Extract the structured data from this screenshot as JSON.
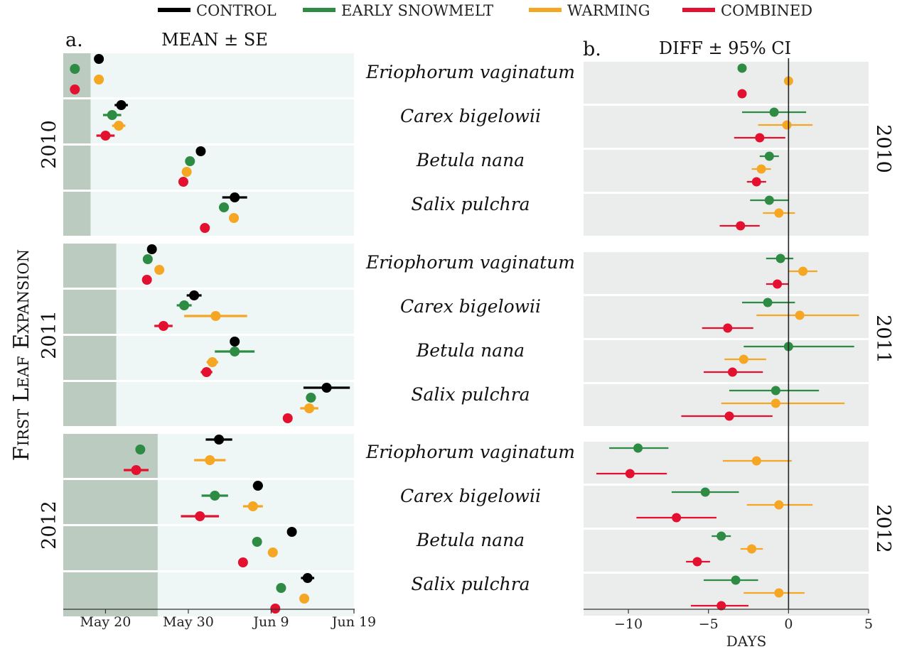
{
  "legend": [
    {
      "key": "control",
      "label": "CONTROL",
      "color": "#000000"
    },
    {
      "key": "early",
      "label": "EARLY SNOWMELT",
      "color": "#2e8b43"
    },
    {
      "key": "warming",
      "label": "WARMING",
      "color": "#f5a623"
    },
    {
      "key": "combined",
      "label": "COMBINED",
      "color": "#e3112f"
    }
  ],
  "y_axis_label": "First Leaf Expansion",
  "panel_a": {
    "letter": "a.",
    "title": "MEAN ± SE"
  },
  "panel_b": {
    "letter": "b.",
    "title": "DIFF ± 95% CI",
    "xlabel": "DAYS"
  },
  "chart_data": [
    {
      "id": "a",
      "type": "scatter",
      "title": "MEAN ± SE",
      "x_unit": "day of year",
      "x_ticks": [
        {
          "value": 140,
          "label": "May 20"
        },
        {
          "value": 150,
          "label": "May 30"
        },
        {
          "value": 160,
          "label": "Jun 9"
        },
        {
          "value": 170,
          "label": "Jun 19"
        }
      ],
      "xlim": [
        134.9,
        170
      ],
      "shaded_until": {
        "2010": 138.2,
        "2011": 141.3,
        "2012": 146.3
      },
      "years": [
        {
          "year": "2010",
          "species": [
            {
              "name": "Eriophorum vaginatum",
              "points": [
                {
                  "group": "control",
                  "mean": 139.2,
                  "se": 0
                },
                {
                  "group": "early",
                  "mean": 136.3,
                  "se": 0
                },
                {
                  "group": "warming",
                  "mean": 139.2,
                  "se": 0
                },
                {
                  "group": "combined",
                  "mean": 136.3,
                  "se": 0
                }
              ]
            },
            {
              "name": "Carex bigelowii",
              "points": [
                {
                  "group": "control",
                  "mean": 141.9,
                  "se": 0.8
                },
                {
                  "group": "early",
                  "mean": 140.8,
                  "se": 1.1
                },
                {
                  "group": "warming",
                  "mean": 141.6,
                  "se": 0.8
                },
                {
                  "group": "combined",
                  "mean": 140.0,
                  "se": 1.1
                }
              ]
            },
            {
              "name": "Betula nana",
              "points": [
                {
                  "group": "control",
                  "mean": 151.5,
                  "se": 0
                },
                {
                  "group": "early",
                  "mean": 150.2,
                  "se": 0
                },
                {
                  "group": "warming",
                  "mean": 149.8,
                  "se": 0
                },
                {
                  "group": "combined",
                  "mean": 149.4,
                  "se": 0
                }
              ]
            },
            {
              "name": "Salix pulchra",
              "points": [
                {
                  "group": "control",
                  "mean": 155.6,
                  "se": 1.5
                },
                {
                  "group": "early",
                  "mean": 154.3,
                  "se": 0.6
                },
                {
                  "group": "warming",
                  "mean": 155.5,
                  "se": 0
                },
                {
                  "group": "combined",
                  "mean": 152.0,
                  "se": 0
                }
              ]
            }
          ]
        },
        {
          "year": "2011",
          "species": [
            {
              "name": "Eriophorum vaginatum",
              "points": [
                {
                  "group": "control",
                  "mean": 145.6,
                  "se": 0
                },
                {
                  "group": "early",
                  "mean": 145.1,
                  "se": 0
                },
                {
                  "group": "warming",
                  "mean": 146.5,
                  "se": 0
                },
                {
                  "group": "combined",
                  "mean": 145.0,
                  "se": 0
                }
              ]
            },
            {
              "name": "Carex bigelowii",
              "points": [
                {
                  "group": "control",
                  "mean": 150.7,
                  "se": 0.9
                },
                {
                  "group": "early",
                  "mean": 149.5,
                  "se": 0.9
                },
                {
                  "group": "warming",
                  "mean": 153.3,
                  "se": 3.8
                },
                {
                  "group": "combined",
                  "mean": 147.0,
                  "se": 1.1
                }
              ]
            },
            {
              "name": "Betula nana",
              "points": [
                {
                  "group": "control",
                  "mean": 155.6,
                  "se": 0
                },
                {
                  "group": "early",
                  "mean": 155.6,
                  "se": 2.4
                },
                {
                  "group": "warming",
                  "mean": 152.9,
                  "se": 0.7
                },
                {
                  "group": "combined",
                  "mean": 152.2,
                  "se": 0.7
                }
              ]
            },
            {
              "name": "Salix pulchra",
              "points": [
                {
                  "group": "control",
                  "mean": 166.7,
                  "se": 2.8
                },
                {
                  "group": "early",
                  "mean": 164.8,
                  "se": 0.6
                },
                {
                  "group": "warming",
                  "mean": 164.6,
                  "se": 1.1
                },
                {
                  "group": "combined",
                  "mean": 162.0,
                  "se": 0
                }
              ]
            }
          ]
        },
        {
          "year": "2012",
          "species": [
            {
              "name": "Eriophorum vaginatum",
              "points": [
                {
                  "group": "control",
                  "mean": 153.7,
                  "se": 1.6
                },
                {
                  "group": "early",
                  "mean": 144.2,
                  "se": 0
                },
                {
                  "group": "warming",
                  "mean": 152.6,
                  "se": 1.9
                },
                {
                  "group": "combined",
                  "mean": 143.7,
                  "se": 1.5
                }
              ]
            },
            {
              "name": "Carex bigelowii",
              "points": [
                {
                  "group": "control",
                  "mean": 158.4,
                  "se": 0.6
                },
                {
                  "group": "early",
                  "mean": 153.2,
                  "se": 1.6
                },
                {
                  "group": "warming",
                  "mean": 157.8,
                  "se": 1.2
                },
                {
                  "group": "combined",
                  "mean": 151.4,
                  "se": 2.3
                }
              ]
            },
            {
              "name": "Betula nana",
              "points": [
                {
                  "group": "control",
                  "mean": 162.5,
                  "se": 0
                },
                {
                  "group": "early",
                  "mean": 158.3,
                  "se": 0
                },
                {
                  "group": "warming",
                  "mean": 160.2,
                  "se": 0
                },
                {
                  "group": "combined",
                  "mean": 156.6,
                  "se": 0
                }
              ]
            },
            {
              "name": "Salix pulchra",
              "points": [
                {
                  "group": "control",
                  "mean": 164.4,
                  "se": 0.8
                },
                {
                  "group": "early",
                  "mean": 161.2,
                  "se": 0
                },
                {
                  "group": "warming",
                  "mean": 164.0,
                  "se": 0
                },
                {
                  "group": "combined",
                  "mean": 160.5,
                  "se": 0
                }
              ]
            }
          ]
        }
      ]
    },
    {
      "id": "b",
      "type": "scatter",
      "title": "DIFF ± 95% CI",
      "xlabel": "DAYS",
      "x_ticks": [
        {
          "value": -10,
          "label": "−10"
        },
        {
          "value": -5,
          "label": "−5"
        },
        {
          "value": 0,
          "label": "0"
        },
        {
          "value": 5,
          "label": "5"
        }
      ],
      "xlim": [
        -12.8,
        5
      ],
      "reference_line": 0,
      "years": [
        {
          "year": "2010",
          "species": [
            {
              "name": "Eriophorum vaginatum",
              "points": [
                {
                  "group": "early",
                  "diff": -2.9,
                  "lo": -2.9,
                  "hi": -2.9
                },
                {
                  "group": "warming",
                  "diff": 0.0,
                  "lo": 0.0,
                  "hi": 0.0
                },
                {
                  "group": "combined",
                  "diff": -2.9,
                  "lo": -2.9,
                  "hi": -2.9
                }
              ]
            },
            {
              "name": "Carex bigelowii",
              "points": [
                {
                  "group": "early",
                  "diff": -0.9,
                  "lo": -2.9,
                  "hi": 1.1
                },
                {
                  "group": "warming",
                  "diff": -0.1,
                  "lo": -1.9,
                  "hi": 1.5
                },
                {
                  "group": "combined",
                  "diff": -1.8,
                  "lo": -3.4,
                  "hi": -0.2
                }
              ]
            },
            {
              "name": "Betula nana",
              "points": [
                {
                  "group": "early",
                  "diff": -1.2,
                  "lo": -1.8,
                  "hi": -0.6
                },
                {
                  "group": "warming",
                  "diff": -1.7,
                  "lo": -2.3,
                  "hi": -1.1
                },
                {
                  "group": "combined",
                  "diff": -2.0,
                  "lo": -2.6,
                  "hi": -1.4
                }
              ]
            },
            {
              "name": "Salix pulchra",
              "points": [
                {
                  "group": "early",
                  "diff": -1.2,
                  "lo": -2.4,
                  "hi": 0.0
                },
                {
                  "group": "warming",
                  "diff": -0.6,
                  "lo": -1.6,
                  "hi": 0.4
                },
                {
                  "group": "combined",
                  "diff": -3.0,
                  "lo": -4.3,
                  "hi": -1.8
                }
              ]
            }
          ]
        },
        {
          "year": "2011",
          "species": [
            {
              "name": "Eriophorum vaginatum",
              "points": [
                {
                  "group": "early",
                  "diff": -0.5,
                  "lo": -1.4,
                  "hi": 0.3
                },
                {
                  "group": "warming",
                  "diff": 0.9,
                  "lo": 0.0,
                  "hi": 1.8
                },
                {
                  "group": "combined",
                  "diff": -0.7,
                  "lo": -1.4,
                  "hi": 0.0
                }
              ]
            },
            {
              "name": "Carex bigelowii",
              "points": [
                {
                  "group": "early",
                  "diff": -1.3,
                  "lo": -2.9,
                  "hi": 0.4
                },
                {
                  "group": "warming",
                  "diff": 0.7,
                  "lo": -2.0,
                  "hi": 4.4
                },
                {
                  "group": "combined",
                  "diff": -3.8,
                  "lo": -5.4,
                  "hi": -2.2
                }
              ]
            },
            {
              "name": "Betula nana",
              "points": [
                {
                  "group": "early",
                  "diff": 0.0,
                  "lo": -2.8,
                  "hi": 4.1
                },
                {
                  "group": "warming",
                  "diff": -2.8,
                  "lo": -4.0,
                  "hi": -1.4
                },
                {
                  "group": "combined",
                  "diff": -3.5,
                  "lo": -5.3,
                  "hi": -1.6
                }
              ]
            },
            {
              "name": "Salix pulchra",
              "points": [
                {
                  "group": "early",
                  "diff": -0.8,
                  "lo": -3.7,
                  "hi": 1.9
                },
                {
                  "group": "warming",
                  "diff": -0.8,
                  "lo": -4.2,
                  "hi": 3.5
                },
                {
                  "group": "combined",
                  "diff": -3.7,
                  "lo": -6.7,
                  "hi": -1.0
                }
              ]
            }
          ]
        },
        {
          "year": "2012",
          "species": [
            {
              "name": "Eriophorum vaginatum",
              "points": [
                {
                  "group": "early",
                  "diff": -9.4,
                  "lo": -11.2,
                  "hi": -7.5
                },
                {
                  "group": "warming",
                  "diff": -2.0,
                  "lo": -4.1,
                  "hi": 0.2
                },
                {
                  "group": "combined",
                  "diff": -9.9,
                  "lo": -12.0,
                  "hi": -7.6
                }
              ]
            },
            {
              "name": "Carex bigelowii",
              "points": [
                {
                  "group": "early",
                  "diff": -5.2,
                  "lo": -7.3,
                  "hi": -3.1
                },
                {
                  "group": "warming",
                  "diff": -0.6,
                  "lo": -2.6,
                  "hi": 1.5
                },
                {
                  "group": "combined",
                  "diff": -7.0,
                  "lo": -9.5,
                  "hi": -4.5
                }
              ]
            },
            {
              "name": "Betula nana",
              "points": [
                {
                  "group": "early",
                  "diff": -4.2,
                  "lo": -4.8,
                  "hi": -3.6
                },
                {
                  "group": "warming",
                  "diff": -2.3,
                  "lo": -3.0,
                  "hi": -1.6
                },
                {
                  "group": "combined",
                  "diff": -5.7,
                  "lo": -6.4,
                  "hi": -4.9
                }
              ]
            },
            {
              "name": "Salix pulchra",
              "points": [
                {
                  "group": "early",
                  "diff": -3.3,
                  "lo": -5.3,
                  "hi": -1.9
                },
                {
                  "group": "warming",
                  "diff": -0.6,
                  "lo": -2.8,
                  "hi": 1.0
                },
                {
                  "group": "combined",
                  "diff": -4.2,
                  "lo": -6.1,
                  "hi": -2.5
                }
              ]
            }
          ]
        }
      ]
    }
  ]
}
